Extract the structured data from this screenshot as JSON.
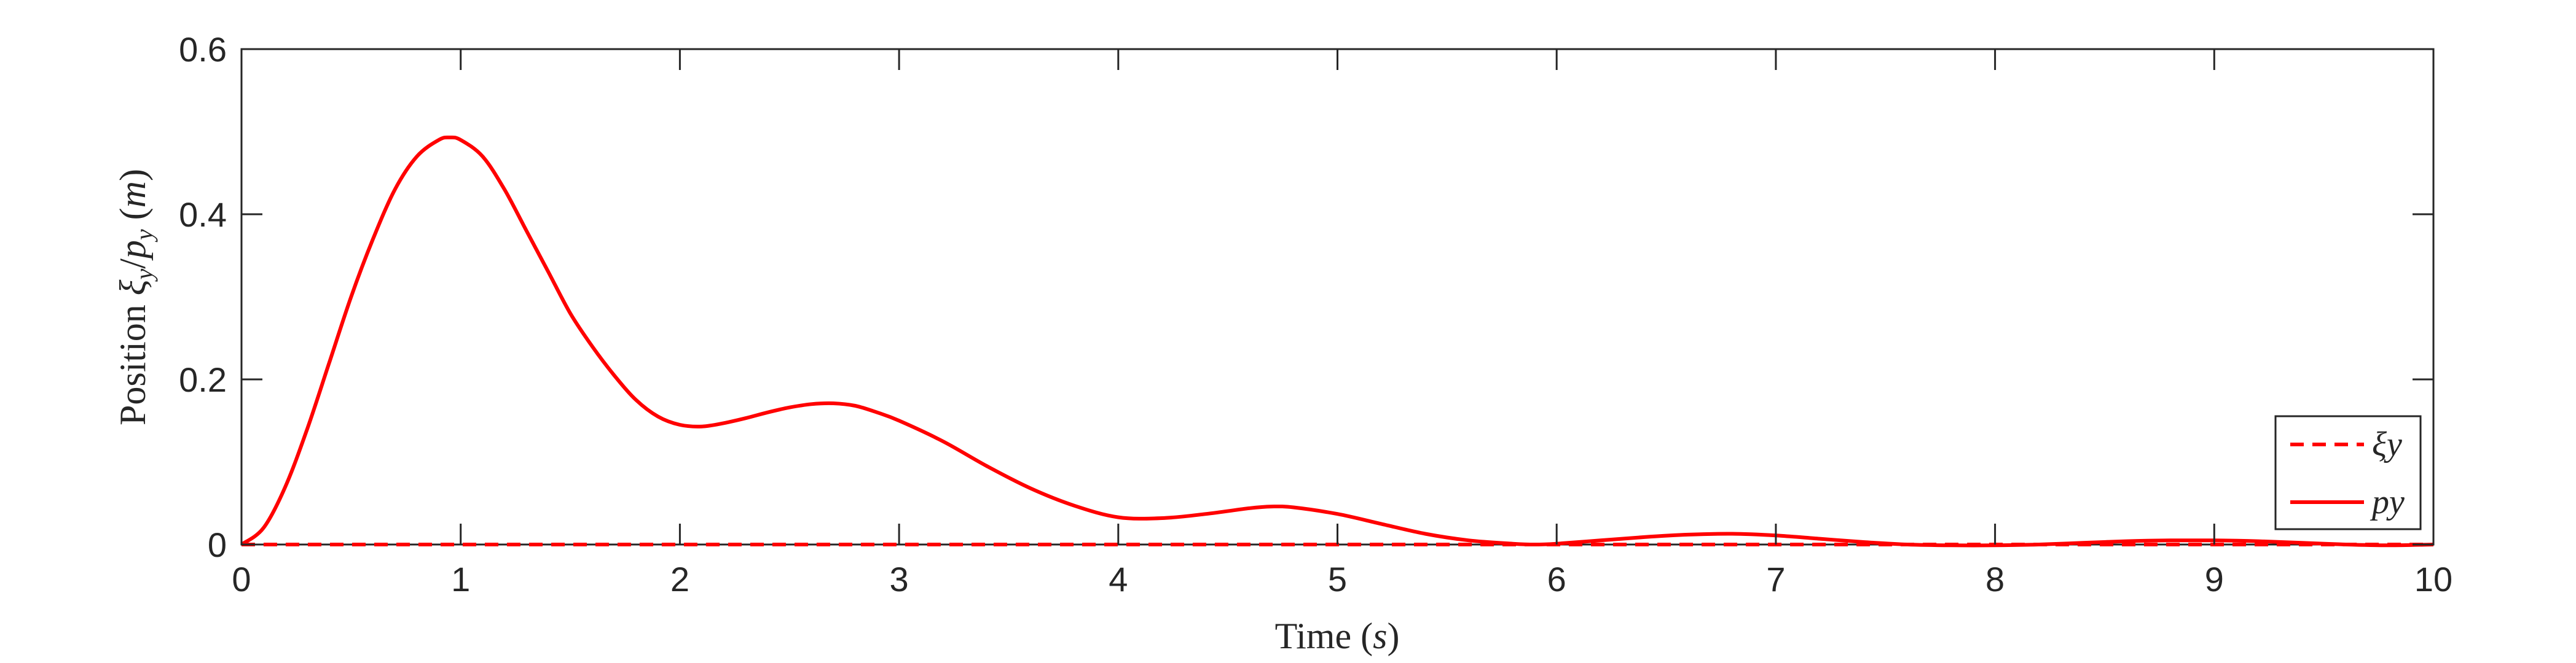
{
  "chart_data": {
    "type": "line",
    "xlabel": "Time (s)",
    "ylabel": "Position ξy/py (m)",
    "xlim": [
      0,
      10
    ],
    "ylim": [
      0,
      0.6
    ],
    "x_ticks": [
      "0",
      "1",
      "2",
      "3",
      "4",
      "5",
      "6",
      "7",
      "8",
      "9",
      "10"
    ],
    "y_ticks": [
      "0",
      "0.2",
      "0.4",
      "0.6"
    ],
    "grid": false,
    "legend_position": "bottom-right",
    "colors": {
      "series": "#ff0000",
      "axes": "#262626"
    },
    "series": [
      {
        "name": "ξy",
        "style": "dashed",
        "x": [
          0,
          10
        ],
        "values": [
          0,
          0
        ]
      },
      {
        "name": "py",
        "style": "solid",
        "x": [
          0,
          0.1,
          0.2,
          0.3,
          0.4,
          0.5,
          0.6,
          0.7,
          0.8,
          0.9,
          0.95,
          1.0,
          1.1,
          1.2,
          1.3,
          1.4,
          1.5,
          1.6,
          1.7,
          1.8,
          1.9,
          2.0,
          2.1,
          2.2,
          2.3,
          2.4,
          2.5,
          2.6,
          2.7,
          2.8,
          2.9,
          3.0,
          3.2,
          3.4,
          3.6,
          3.8,
          4.0,
          4.2,
          4.4,
          4.6,
          4.7,
          4.8,
          5.0,
          5.2,
          5.4,
          5.6,
          5.8,
          5.9,
          6.0,
          6.2,
          6.4,
          6.6,
          6.8,
          7.0,
          7.2,
          7.4,
          7.6,
          7.8,
          8.0,
          8.2,
          8.4,
          8.6,
          8.8,
          9.0,
          9.2,
          9.4,
          9.6,
          9.8,
          10.0
        ],
        "values": [
          0,
          0.02,
          0.07,
          0.14,
          0.22,
          0.3,
          0.37,
          0.43,
          0.47,
          0.49,
          0.493,
          0.49,
          0.47,
          0.43,
          0.38,
          0.33,
          0.28,
          0.24,
          0.205,
          0.175,
          0.155,
          0.145,
          0.143,
          0.147,
          0.153,
          0.16,
          0.166,
          0.17,
          0.171,
          0.168,
          0.16,
          0.15,
          0.125,
          0.095,
          0.068,
          0.047,
          0.033,
          0.032,
          0.037,
          0.044,
          0.046,
          0.045,
          0.037,
          0.025,
          0.013,
          0.005,
          0.001,
          0.0,
          0.001,
          0.005,
          0.009,
          0.012,
          0.013,
          0.011,
          0.007,
          0.003,
          0.0,
          -0.001,
          -0.001,
          0.0,
          0.002,
          0.004,
          0.005,
          0.005,
          0.004,
          0.002,
          0.0,
          -0.001,
          0.0
        ]
      }
    ]
  }
}
